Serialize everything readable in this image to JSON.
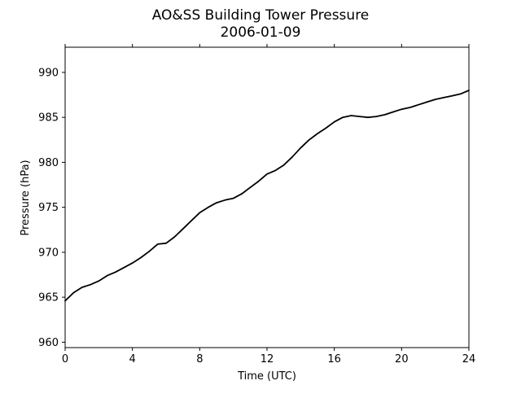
{
  "chart_data": {
    "type": "line",
    "title": "AO&SS Building Tower Pressure",
    "subtitle": "2006-01-09",
    "xlabel": "Time (UTC)",
    "ylabel": "Pressure (hPa)",
    "xlim": [
      0,
      24
    ],
    "ylim": [
      959.4,
      992.8
    ],
    "xticks": [
      0,
      4,
      8,
      12,
      16,
      20,
      24
    ],
    "yticks": [
      960,
      965,
      970,
      975,
      980,
      985,
      990
    ],
    "grid": false,
    "legend": "none",
    "line_color": "#000000",
    "series": [
      {
        "x": [
          0,
          0.5,
          1,
          1.5,
          2,
          2.5,
          3,
          3.5,
          4,
          4.5,
          5,
          5.5,
          6,
          6.5,
          7,
          7.5,
          8,
          8.5,
          9,
          9.5,
          10,
          10.5,
          11,
          11.5,
          12,
          12.5,
          13,
          13.5,
          14,
          14.5,
          15,
          15.5,
          16,
          16.5,
          17,
          17.5,
          18,
          18.5,
          19,
          19.5,
          20,
          20.5,
          21,
          21.5,
          22,
          22.5,
          23,
          23.5,
          24
        ],
        "y": [
          964.6,
          965.5,
          966.1,
          966.4,
          966.8,
          967.4,
          967.8,
          968.3,
          968.8,
          969.4,
          970.1,
          970.9,
          971.0,
          971.7,
          972.6,
          973.5,
          974.4,
          975.0,
          975.5,
          975.8,
          976.0,
          976.5,
          977.2,
          977.9,
          978.7,
          979.1,
          979.7,
          980.6,
          981.6,
          982.5,
          983.2,
          983.8,
          984.5,
          985.0,
          985.2,
          985.1,
          985.0,
          985.1,
          985.3,
          985.6,
          985.9,
          986.1,
          986.4,
          986.7,
          987.0,
          987.2,
          987.4,
          987.6,
          988.0
        ]
      }
    ]
  }
}
